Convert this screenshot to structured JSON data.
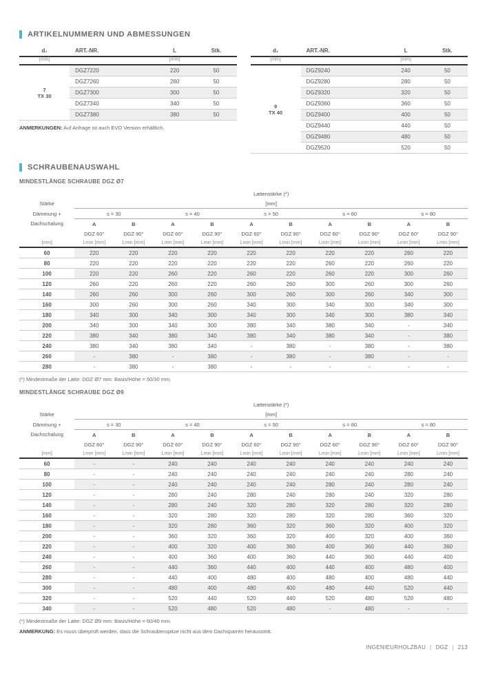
{
  "accent": "#4bb8c9",
  "stripe_bg": "#eeeeee",
  "section1": {
    "title": "ARTIKELNUMMERN UND ABMESSUNGEN",
    "headers": [
      "d₁",
      "ART.-NR.",
      "L",
      "Stk."
    ],
    "units": [
      "[mm]",
      "",
      "[mm]",
      ""
    ],
    "left_key_1": "7\nTX 30",
    "left_key_2": "9\nTX 40",
    "table1_rows": [
      [
        "DGZ7220",
        "220",
        "50"
      ],
      [
        "DGZ7260",
        "260",
        "50"
      ],
      [
        "DGZ7300",
        "300",
        "50"
      ],
      [
        "DGZ7340",
        "340",
        "50"
      ],
      [
        "DGZ7380",
        "380",
        "50"
      ]
    ],
    "table2_rows": [
      [
        "DGZ9240",
        "240",
        "50"
      ],
      [
        "DGZ9280",
        "280",
        "50"
      ],
      [
        "DGZ9320",
        "320",
        "50"
      ],
      [
        "DGZ9360",
        "360",
        "50"
      ],
      [
        "DGZ9400",
        "400",
        "50"
      ],
      [
        "DGZ9440",
        "440",
        "50"
      ],
      [
        "DGZ9480",
        "480",
        "50"
      ],
      [
        "DGZ9520",
        "520",
        "50"
      ]
    ],
    "note_label": "ANMERKUNGEN:",
    "note_text": "Auf Anfrage ist auch EVO Version erhältlich."
  },
  "section2": {
    "title": "SCHRAUBENAUSWAHL",
    "subtitle7": "MINDESTLÄNGE SCHRAUBE DGZ Ø7",
    "subtitle9": "MINDESTLÄNGE SCHRAUBE DGZ Ø9",
    "latt_label": "Lattenstärke (*)",
    "latt_unit": "[mm]",
    "left_head1": "Stärke",
    "left_head2": "Dämmung +",
    "left_head3": "Dachschalung",
    "left_unit": "[mm]",
    "s_values": [
      "s = 30",
      "s = 40",
      "s = 50",
      "s = 60",
      "s = 80"
    ],
    "ab_labels": [
      "A",
      "B"
    ],
    "col_sub": [
      "DGZ 60°",
      "DGZ 90°"
    ],
    "lmin_label": "Lmin [mm]",
    "rows7": [
      [
        "60",
        "220",
        "220",
        "220",
        "220",
        "220",
        "220",
        "220",
        "220",
        "260",
        "220"
      ],
      [
        "80",
        "220",
        "220",
        "220",
        "220",
        "220",
        "220",
        "260",
        "220",
        "260",
        "220"
      ],
      [
        "100",
        "220",
        "220",
        "260",
        "220",
        "260",
        "220",
        "260",
        "220",
        "300",
        "260"
      ],
      [
        "120",
        "260",
        "220",
        "260",
        "220",
        "260",
        "260",
        "300",
        "260",
        "300",
        "260"
      ],
      [
        "140",
        "260",
        "260",
        "300",
        "260",
        "300",
        "260",
        "300",
        "260",
        "340",
        "300"
      ],
      [
        "160",
        "300",
        "260",
        "300",
        "260",
        "340",
        "300",
        "340",
        "300",
        "340",
        "300"
      ],
      [
        "180",
        "340",
        "300",
        "340",
        "300",
        "340",
        "300",
        "340",
        "300",
        "380",
        "340"
      ],
      [
        "200",
        "340",
        "300",
        "340",
        "300",
        "380",
        "340",
        "380",
        "340",
        "-",
        "340"
      ],
      [
        "220",
        "380",
        "340",
        "380",
        "340",
        "380",
        "340",
        "380",
        "340",
        "-",
        "380"
      ],
      [
        "240",
        "380",
        "340",
        "380",
        "340",
        "-",
        "380",
        "-",
        "380",
        "-",
        "380"
      ],
      [
        "260",
        "-",
        "380",
        "-",
        "380",
        "-",
        "380",
        "-",
        "380",
        "-",
        "-"
      ],
      [
        "280",
        "-",
        "380",
        "-",
        "380",
        "-",
        "-",
        "-",
        "-",
        "-",
        "-"
      ]
    ],
    "foot7_label": "(*) Mindestmaße der Latte: DGZ Ø7 mm: Basis/Höhe = 50/30 mm.",
    "rows9": [
      [
        "60",
        "-",
        "-",
        "240",
        "240",
        "240",
        "240",
        "240",
        "240",
        "240",
        "240"
      ],
      [
        "80",
        "-",
        "-",
        "240",
        "240",
        "240",
        "240",
        "240",
        "240",
        "280",
        "240"
      ],
      [
        "100",
        "-",
        "-",
        "240",
        "240",
        "240",
        "240",
        "280",
        "240",
        "280",
        "240"
      ],
      [
        "120",
        "-",
        "-",
        "280",
        "240",
        "280",
        "240",
        "280",
        "240",
        "320",
        "280"
      ],
      [
        "140",
        "-",
        "-",
        "280",
        "240",
        "320",
        "280",
        "320",
        "280",
        "320",
        "280"
      ],
      [
        "160",
        "-",
        "-",
        "320",
        "280",
        "320",
        "280",
        "320",
        "280",
        "360",
        "320"
      ],
      [
        "180",
        "-",
        "-",
        "320",
        "280",
        "360",
        "320",
        "360",
        "320",
        "400",
        "320"
      ],
      [
        "200",
        "-",
        "-",
        "360",
        "320",
        "360",
        "320",
        "400",
        "320",
        "400",
        "360"
      ],
      [
        "220",
        "-",
        "-",
        "400",
        "320",
        "400",
        "360",
        "400",
        "360",
        "440",
        "360"
      ],
      [
        "240",
        "-",
        "-",
        "400",
        "360",
        "400",
        "360",
        "440",
        "360",
        "440",
        "400"
      ],
      [
        "260",
        "-",
        "-",
        "440",
        "360",
        "440",
        "400",
        "440",
        "400",
        "480",
        "400"
      ],
      [
        "280",
        "-",
        "-",
        "440",
        "400",
        "480",
        "400",
        "480",
        "400",
        "480",
        "440"
      ],
      [
        "300",
        "-",
        "-",
        "480",
        "400",
        "480",
        "400",
        "480",
        "440",
        "520",
        "440"
      ],
      [
        "320",
        "-",
        "-",
        "520",
        "440",
        "520",
        "440",
        "520",
        "480",
        "520",
        "480"
      ],
      [
        "340",
        "-",
        "-",
        "520",
        "480",
        "520",
        "480",
        "-",
        "480",
        "-",
        "-"
      ]
    ],
    "foot9_label": "(*) Mindestmaße der Latte: DGZ Ø9 mm: Basis/Höhe = 60/40 mm.",
    "note2_label": "ANMERKUNG:",
    "note2_text": "Es muss überprüft werden, dass die Schraubenspitze nicht aus dem Dachsparren herausstritt."
  },
  "footer": {
    "text1": "INGENIEURHOLZBAU",
    "text2": "DGZ",
    "page": "213"
  }
}
